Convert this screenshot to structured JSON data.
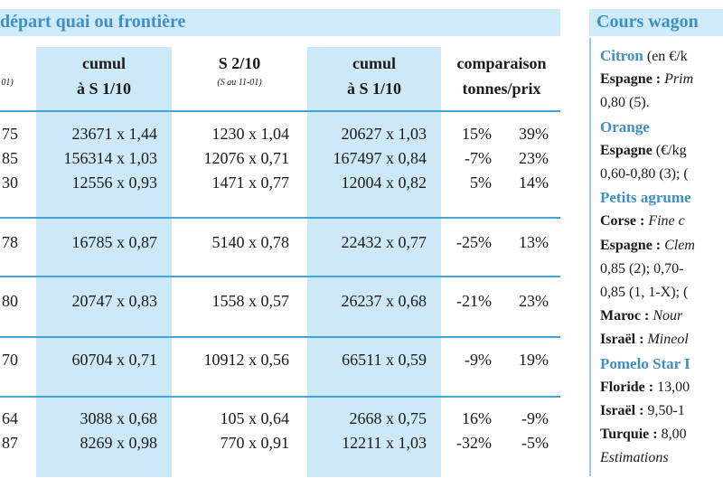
{
  "title": "départ quai ou frontière",
  "headers": {
    "cumul1": [
      "cumul",
      "à S 1/10"
    ],
    "s210": [
      "S 2/10",
      "(S au 11-01)"
    ],
    "cumul2": [
      "cumul",
      "à S 1/10"
    ],
    "comp": [
      "comparaison",
      "tonnes/prix"
    ],
    "left_sub": "01)"
  },
  "rows": [
    {
      "a": "75",
      "b": "23671 x 1,44",
      "c": "1230 x 1,04",
      "d": "20627 x 1,03",
      "e": "15%",
      "f": "39%"
    },
    {
      "a": "85",
      "b": "156314 x 1,03",
      "c": "12076 x 0,71",
      "d": "167497 x 0,84",
      "e": "-7%",
      "f": "23%"
    },
    {
      "a": "30",
      "b": "12556 x 0,93",
      "c": "1471 x 0,77",
      "d": "12004 x 0,82",
      "e": "5%",
      "f": "14%"
    },
    {
      "a": "78",
      "b": "16785 x 0,87",
      "c": "5140 x 0,78",
      "d": "22432 x 0,77",
      "e": "-25%",
      "f": "13%"
    },
    {
      "a": "80",
      "b": "20747 x 0,83",
      "c": "1558 x 0,57",
      "d": "26237 x 0,68",
      "e": "-21%",
      "f": "23%"
    },
    {
      "a": "70",
      "b": "60704 x 0,71",
      "c": "10912 x 0,56",
      "d": "66511 x 0,59",
      "e": "-9%",
      "f": "19%"
    },
    {
      "a": "64",
      "b": "3088 x 0,68",
      "c": "105 x 0,64",
      "d": "2668 x 0,75",
      "e": "16%",
      "f": "-9%"
    },
    {
      "a": "87",
      "b": "8269 x 0,98",
      "c": "770 x 0,91",
      "d": "12211 x 1,03",
      "e": "-32%",
      "f": "-5%"
    }
  ],
  "side": {
    "title": "Cours wagon",
    "lines": [
      {
        "parts": [
          {
            "t": "Citron",
            "c": "blue"
          },
          {
            "t": " (en €/k",
            "c": ""
          }
        ]
      },
      {
        "parts": [
          {
            "t": "Espagne :",
            "c": "b"
          },
          {
            "t": " Prim",
            "c": "i"
          }
        ]
      },
      {
        "parts": [
          {
            "t": "0,80 (5).",
            "c": ""
          }
        ]
      },
      {
        "parts": [
          {
            "t": "Orange",
            "c": "blue"
          }
        ]
      },
      {
        "parts": [
          {
            "t": "Espagne",
            "c": "b"
          },
          {
            "t": " (€/kg",
            "c": ""
          }
        ]
      },
      {
        "parts": [
          {
            "t": "0,60-0,80 (3); (",
            "c": ""
          }
        ]
      },
      {
        "parts": [
          {
            "t": "Petits agrume",
            "c": "blue"
          }
        ]
      },
      {
        "parts": [
          {
            "t": "Corse :",
            "c": "b"
          },
          {
            "t": " Fine c",
            "c": "i"
          }
        ]
      },
      {
        "parts": [
          {
            "t": "Espagne :",
            "c": "b"
          },
          {
            "t": " Clem",
            "c": "i"
          }
        ]
      },
      {
        "parts": [
          {
            "t": "0,85 (2); 0,70-",
            "c": ""
          }
        ]
      },
      {
        "parts": [
          {
            "t": "0,85 (1, 1-X); (",
            "c": ""
          }
        ]
      },
      {
        "parts": [
          {
            "t": "Maroc :",
            "c": "b"
          },
          {
            "t": " Nour",
            "c": "i"
          }
        ]
      },
      {
        "parts": [
          {
            "t": "Israël :",
            "c": "b"
          },
          {
            "t": " Mineol",
            "c": "i"
          }
        ]
      },
      {
        "parts": [
          {
            "t": "Pomelo Star I",
            "c": "blue"
          }
        ]
      },
      {
        "parts": [
          {
            "t": "Floride :",
            "c": "b"
          },
          {
            "t": " 13,00",
            "c": ""
          }
        ]
      },
      {
        "parts": [
          {
            "t": "Israël :",
            "c": "b"
          },
          {
            "t": " 9,50-1",
            "c": ""
          }
        ]
      },
      {
        "parts": [
          {
            "t": "Turquie :",
            "c": "b"
          },
          {
            "t": " 8,00",
            "c": ""
          }
        ]
      },
      {
        "parts": [
          {
            "t": "Estimations",
            "c": "i"
          }
        ]
      }
    ]
  }
}
